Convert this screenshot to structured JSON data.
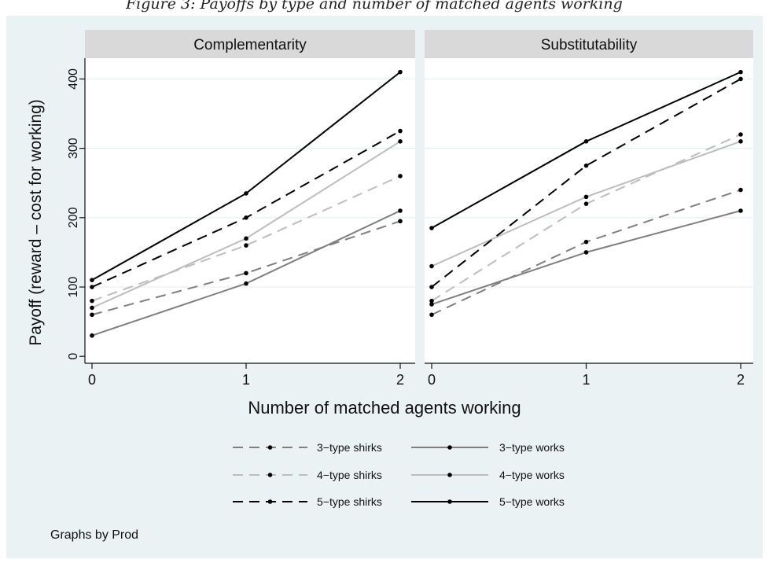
{
  "caption": "Figure 3: Payoffs by type and number of matched agents working",
  "footer": "Graphs by Prod",
  "chart_data": {
    "type": "line",
    "xlabel": "Number of matched agents working",
    "ylabel": "Payoff (reward – cost for working)",
    "x": [
      0,
      1,
      2
    ],
    "xticks": [
      "0",
      "1",
      "2"
    ],
    "yticks": [
      0,
      100,
      200,
      300,
      400
    ],
    "ylim": [
      -10,
      430
    ],
    "grid": true,
    "legend_position": "bottom",
    "panels": [
      {
        "title": "Complementarity",
        "series": [
          {
            "name": "3−type shirks",
            "values": [
              60,
              120,
              195
            ],
            "color": "#7f7f7f",
            "dashed": true
          },
          {
            "name": "3−type works",
            "values": [
              30,
              105,
              210
            ],
            "color": "#7f7f7f",
            "dashed": false
          },
          {
            "name": "4−type shirks",
            "values": [
              80,
              160,
              260
            ],
            "color": "#bdbdbd",
            "dashed": true
          },
          {
            "name": "4−type works",
            "values": [
              70,
              170,
              310
            ],
            "color": "#bdbdbd",
            "dashed": false
          },
          {
            "name": "5−type shirks",
            "values": [
              100,
              200,
              325
            ],
            "color": "#000000",
            "dashed": true
          },
          {
            "name": "5−type works",
            "values": [
              110,
              235,
              410
            ],
            "color": "#000000",
            "dashed": false
          }
        ]
      },
      {
        "title": "Substitutability",
        "series": [
          {
            "name": "3−type shirks",
            "values": [
              60,
              165,
              240
            ],
            "color": "#7f7f7f",
            "dashed": true
          },
          {
            "name": "3−type works",
            "values": [
              75,
              150,
              210
            ],
            "color": "#7f7f7f",
            "dashed": false
          },
          {
            "name": "4−type shirks",
            "values": [
              80,
              220,
              320
            ],
            "color": "#bdbdbd",
            "dashed": true
          },
          {
            "name": "4−type works",
            "values": [
              130,
              230,
              310
            ],
            "color": "#bdbdbd",
            "dashed": false
          },
          {
            "name": "5−type shirks",
            "values": [
              100,
              275,
              400
            ],
            "color": "#000000",
            "dashed": true
          },
          {
            "name": "5−type works",
            "values": [
              185,
              310,
              410
            ],
            "color": "#000000",
            "dashed": false
          }
        ]
      }
    ],
    "legend_order": [
      [
        "3−type shirks",
        "3−type works"
      ],
      [
        "4−type shirks",
        "4−type works"
      ],
      [
        "5−type shirks",
        "5−type works"
      ]
    ]
  }
}
